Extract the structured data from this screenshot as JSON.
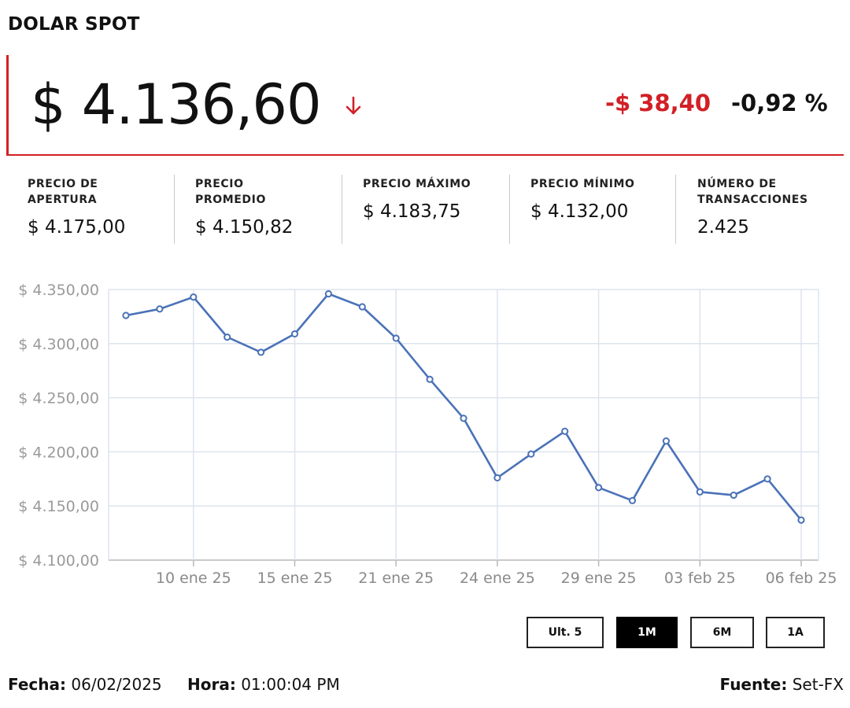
{
  "title": "DOLAR SPOT",
  "price": {
    "current": "$ 4.136,60",
    "change_abs": "-$ 38,40",
    "change_pct": "-0,92 %",
    "direction_icon": "arrow-down-icon",
    "accent_color": "#d21f26"
  },
  "stats": [
    {
      "label": "PRECIO DE APERTURA",
      "value": "$ 4.175,00"
    },
    {
      "label": "PRECIO PROMEDIO",
      "value": "$ 4.150,82"
    },
    {
      "label": "PRECIO MÁXIMO",
      "value": "$ 4.183,75"
    },
    {
      "label": "PRECIO MÍNIMO",
      "value": "$ 4.132,00"
    },
    {
      "label": "NÚMERO DE TRANSACCIONES",
      "value": "2.425"
    }
  ],
  "chart_data": {
    "type": "line",
    "series": [
      {
        "color": "#4a72b8",
        "values": [
          4326,
          4332,
          4343,
          4306,
          4292,
          4309,
          4346,
          4334,
          4305,
          4267,
          4231,
          4176,
          4198,
          4219,
          4167,
          4155,
          4210,
          4163,
          4160,
          4175,
          4137
        ]
      }
    ],
    "ylim": [
      4100,
      4350
    ],
    "yticks": [
      "$ 4.100,00",
      "$ 4.150,00",
      "$ 4.200,00",
      "$ 4.250,00",
      "$ 4.300,00",
      "$ 4.350,00"
    ],
    "xticks": [
      {
        "label": "10 ene 25",
        "index": 2
      },
      {
        "label": "15 ene 25",
        "index": 5
      },
      {
        "label": "21 ene 25",
        "index": 8
      },
      {
        "label": "24 ene 25",
        "index": 11
      },
      {
        "label": "29 ene 25",
        "index": 14
      },
      {
        "label": "03 feb 25",
        "index": 17
      },
      {
        "label": "06 feb 25",
        "index": 20
      }
    ],
    "grid": true
  },
  "range_buttons": [
    {
      "label": "Ult. 5",
      "active": false
    },
    {
      "label": "1M",
      "active": true
    },
    {
      "label": "6M",
      "active": false
    },
    {
      "label": "1A",
      "active": false
    }
  ],
  "footer": {
    "fecha_label": "Fecha:",
    "fecha_value": "06/02/2025",
    "hora_label": "Hora:",
    "hora_value": "01:00:04 PM",
    "fuente_label": "Fuente:",
    "fuente_value": "Set-FX"
  }
}
